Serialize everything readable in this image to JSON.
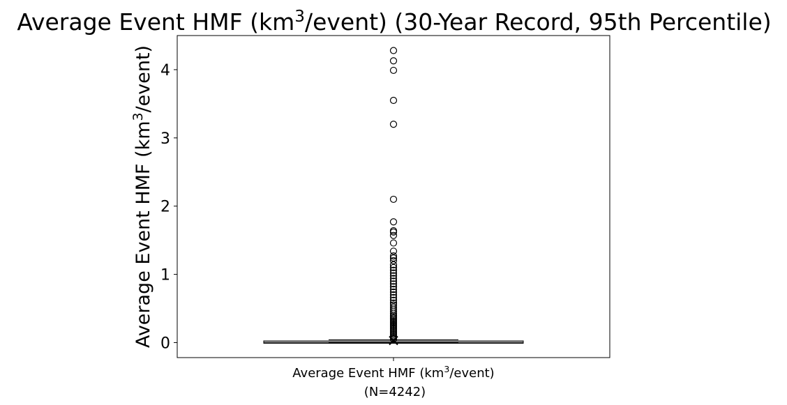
{
  "chart_data": {
    "type": "box",
    "title": {
      "pre": "Average Event HMF (km",
      "sup": "3",
      "post": "/event) (30-Year Record, 95th Percentile)"
    },
    "ylabel": {
      "pre": "Average Event HMF (km",
      "sup": "3",
      "post": "/event)"
    },
    "xlabel": {
      "pre": "Average Event HMF (km",
      "sup": "3",
      "post": "/event)",
      "line2": "(N=4242)"
    },
    "ylim": [
      -0.22,
      4.5
    ],
    "yticks": [
      0,
      1,
      2,
      3,
      4
    ],
    "ytick_labels": [
      "0",
      "1",
      "2",
      "3",
      "4"
    ],
    "grid": false,
    "box": {
      "q1": 0.0,
      "median": 0.005,
      "q3": 0.015,
      "whisker_low": 0.0,
      "whisker_high": 0.04,
      "mean": 0.03
    },
    "outliers": [
      4.28,
      4.13,
      3.99,
      3.55,
      3.2,
      2.1,
      1.77,
      1.64,
      1.62,
      1.57,
      1.46,
      1.34,
      1.27,
      1.24,
      1.2,
      1.14,
      1.1,
      1.06,
      1.02,
      0.98,
      0.94,
      0.9,
      0.86,
      0.82,
      0.78,
      0.74,
      0.7,
      0.66,
      0.62,
      0.58,
      0.55,
      0.52,
      0.49,
      0.46,
      0.43,
      0.4,
      0.38,
      0.36,
      0.34,
      0.32,
      0.3,
      0.28,
      0.26,
      0.24,
      0.22,
      0.2,
      0.18,
      0.16,
      0.14,
      0.12,
      0.1,
      0.08,
      0.06,
      0.05
    ]
  }
}
